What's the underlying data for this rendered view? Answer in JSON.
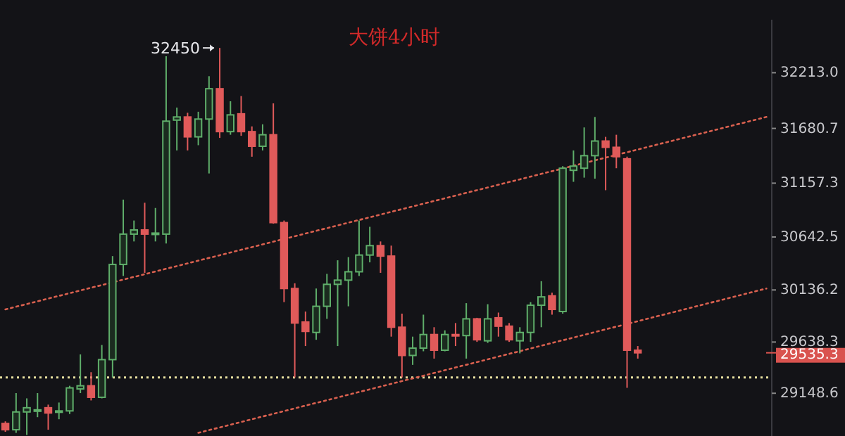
{
  "chart_data": {
    "type": "candlestick",
    "title": "大饼4小时",
    "categories": [
      null,
      null,
      null,
      null,
      null,
      null,
      null,
      null,
      null,
      null,
      null,
      null,
      null,
      null,
      null,
      null,
      null,
      null,
      null,
      null,
      null,
      null,
      null,
      null,
      null,
      null,
      null,
      null,
      null,
      null,
      null,
      null,
      null,
      null,
      null,
      null,
      null,
      null,
      null,
      null,
      null,
      null,
      null,
      null,
      null,
      null,
      null,
      null,
      null,
      null,
      null,
      null,
      null,
      null,
      null,
      null,
      null,
      null,
      null,
      null,
      null,
      null,
      null,
      null,
      null,
      null,
      null,
      null,
      null,
      null,
      null,
      null
    ],
    "ohlc": [
      [
        28860,
        28880,
        28780,
        28800
      ],
      [
        28800,
        29150,
        28770,
        28970
      ],
      [
        28970,
        29100,
        28750,
        29010
      ],
      [
        28980,
        29150,
        28920,
        28990
      ],
      [
        29010,
        29040,
        28800,
        28960
      ],
      [
        28970,
        29060,
        28900,
        28980
      ],
      [
        28980,
        29220,
        28950,
        29200
      ],
      [
        29190,
        29520,
        29150,
        29220
      ],
      [
        29220,
        29350,
        29080,
        29110
      ],
      [
        29110,
        29610,
        29100,
        29470
      ],
      [
        29470,
        30460,
        29300,
        30380
      ],
      [
        30380,
        31000,
        30270,
        30670
      ],
      [
        30670,
        30800,
        30600,
        30710
      ],
      [
        30710,
        30970,
        30300,
        30670
      ],
      [
        30670,
        30920,
        30600,
        30680
      ],
      [
        30670,
        32370,
        30580,
        31750
      ],
      [
        31760,
        31880,
        31470,
        31790
      ],
      [
        31790,
        31830,
        31470,
        31600
      ],
      [
        31600,
        31840,
        31520,
        31770
      ],
      [
        31770,
        32180,
        31250,
        32060
      ],
      [
        32060,
        32450,
        31590,
        31650
      ],
      [
        31650,
        31940,
        31620,
        31810
      ],
      [
        31820,
        31990,
        31610,
        31650
      ],
      [
        31650,
        31700,
        31410,
        31510
      ],
      [
        31510,
        31720,
        31470,
        31620
      ],
      [
        31620,
        31920,
        30770,
        30780
      ],
      [
        30780,
        30800,
        30020,
        30150
      ],
      [
        30150,
        30200,
        29300,
        29820
      ],
      [
        29830,
        29930,
        29600,
        29740
      ],
      [
        29730,
        30150,
        29660,
        29980
      ],
      [
        29980,
        30290,
        29860,
        30190
      ],
      [
        30190,
        30420,
        29600,
        30230
      ],
      [
        30230,
        30450,
        29980,
        30310
      ],
      [
        30310,
        30800,
        30270,
        30470
      ],
      [
        30470,
        30740,
        30400,
        30560
      ],
      [
        30560,
        30600,
        30300,
        30460
      ],
      [
        30460,
        30560,
        29690,
        29780
      ],
      [
        29780,
        29910,
        29300,
        29510
      ],
      [
        29510,
        29690,
        29420,
        29580
      ],
      [
        29580,
        29900,
        29550,
        29710
      ],
      [
        29710,
        29780,
        29480,
        29560
      ],
      [
        29560,
        29750,
        29550,
        29710
      ],
      [
        29710,
        29820,
        29600,
        29700
      ],
      [
        29700,
        30010,
        29480,
        29860
      ],
      [
        29860,
        29870,
        29640,
        29660
      ],
      [
        29650,
        30000,
        29630,
        29860
      ],
      [
        29870,
        29920,
        29690,
        29790
      ],
      [
        29790,
        29820,
        29640,
        29660
      ],
      [
        29650,
        29780,
        29530,
        29730
      ],
      [
        29730,
        30020,
        29640,
        29990
      ],
      [
        29990,
        30220,
        29780,
        30070
      ],
      [
        30080,
        30110,
        29900,
        29950
      ],
      [
        29930,
        31320,
        29910,
        31300
      ],
      [
        31280,
        31470,
        31170,
        31320
      ],
      [
        31300,
        31690,
        31210,
        31420
      ],
      [
        31420,
        31790,
        31200,
        31560
      ],
      [
        31560,
        31600,
        31090,
        31500
      ],
      [
        31500,
        31620,
        31300,
        31410
      ],
      [
        31390,
        31410,
        29200,
        29560
      ],
      [
        29560,
        29600,
        29480,
        29535.3
      ],
      null,
      null,
      null,
      null,
      null,
      null,
      null,
      null,
      null,
      null,
      null,
      null
    ],
    "colors": [
      "#e05a5a",
      "#5fae6a",
      "#5fae6a",
      "#5fae6a",
      "#e05a5a",
      "#5fae6a",
      "#5fae6a",
      "#5fae6a",
      "#e05a5a",
      "#5fae6a",
      "#5fae6a",
      "#5fae6a",
      "#5fae6a",
      "#e05a5a",
      "#5fae6a",
      "#5fae6a",
      "#5fae6a",
      "#e05a5a",
      "#5fae6a",
      "#5fae6a",
      "#e05a5a",
      "#5fae6a",
      "#e05a5a",
      "#e05a5a",
      "#5fae6a",
      "#e05a5a",
      "#e05a5a",
      "#e05a5a",
      "#e05a5a",
      "#5fae6a",
      "#5fae6a",
      "#5fae6a",
      "#5fae6a",
      "#5fae6a",
      "#5fae6a",
      "#e05a5a",
      "#e05a5a",
      "#e05a5a",
      "#5fae6a",
      "#5fae6a",
      "#e05a5a",
      "#5fae6a",
      "#e05a5a",
      "#5fae6a",
      "#e05a5a",
      "#5fae6a",
      "#e05a5a",
      "#e05a5a",
      "#5fae6a",
      "#5fae6a",
      "#5fae6a",
      "#e05a5a",
      "#5fae6a",
      "#5fae6a",
      "#5fae6a",
      "#5fae6a",
      "#e05a5a",
      "#e05a5a",
      "#e05a5a",
      "#e05a5a",
      null,
      null,
      null,
      null,
      null,
      null,
      null,
      null,
      null,
      null,
      null,
      null
    ],
    "series": [
      {
        "type": "line",
        "values": [
          29950,
          null,
          null,
          null,
          null,
          null,
          null,
          null,
          null,
          null,
          null,
          null,
          null,
          null,
          null,
          null,
          null,
          null,
          null,
          null,
          null,
          null,
          null,
          null,
          null,
          null,
          null,
          null,
          null,
          null,
          null,
          null,
          null,
          null,
          null,
          null,
          null,
          null,
          null,
          null,
          null,
          null,
          null,
          null,
          null,
          null,
          null,
          null,
          null,
          null,
          null,
          null,
          null,
          null,
          null,
          null,
          null,
          null,
          null,
          null,
          null,
          null,
          null,
          null,
          null,
          null,
          null,
          null,
          null,
          null,
          null,
          31790
        ],
        "color": "#d9604f",
        "line_style": "dotted"
      },
      {
        "type": "line",
        "values": [
          null,
          null,
          null,
          null,
          null,
          null,
          null,
          null,
          null,
          null,
          null,
          null,
          null,
          null,
          null,
          null,
          null,
          null,
          28770,
          null,
          null,
          null,
          null,
          null,
          null,
          null,
          null,
          null,
          null,
          null,
          null,
          null,
          null,
          null,
          null,
          null,
          null,
          null,
          null,
          null,
          null,
          null,
          null,
          null,
          null,
          null,
          null,
          null,
          null,
          null,
          null,
          null,
          null,
          null,
          null,
          null,
          null,
          null,
          null,
          null,
          null,
          null,
          null,
          null,
          null,
          null,
          null,
          null,
          null,
          null,
          null,
          30150
        ],
        "color": "#d9604f",
        "line_style": "dotted"
      }
    ],
    "ylim": [
      28740,
      32720
    ],
    "yticks": [
      {
        "value": 29148.6,
        "label": "29148.6"
      },
      {
        "value": 29638.3,
        "label": "29638.3"
      },
      {
        "value": 30136.2,
        "label": "30136.2"
      },
      {
        "value": 30642.5,
        "label": "30642.5"
      },
      {
        "value": 31157.3,
        "label": "31157.3"
      },
      {
        "value": 31680.7,
        "label": "31680.7"
      },
      {
        "value": 32213,
        "label": "32213.0"
      }
    ],
    "tick_labels": "y",
    "ref_lines": [
      {
        "axis": "y",
        "value": 29300,
        "color": "#e8e0a0",
        "line_style": "dotted"
      }
    ],
    "annotations": [
      "32450",
      "29535.3"
    ]
  }
}
